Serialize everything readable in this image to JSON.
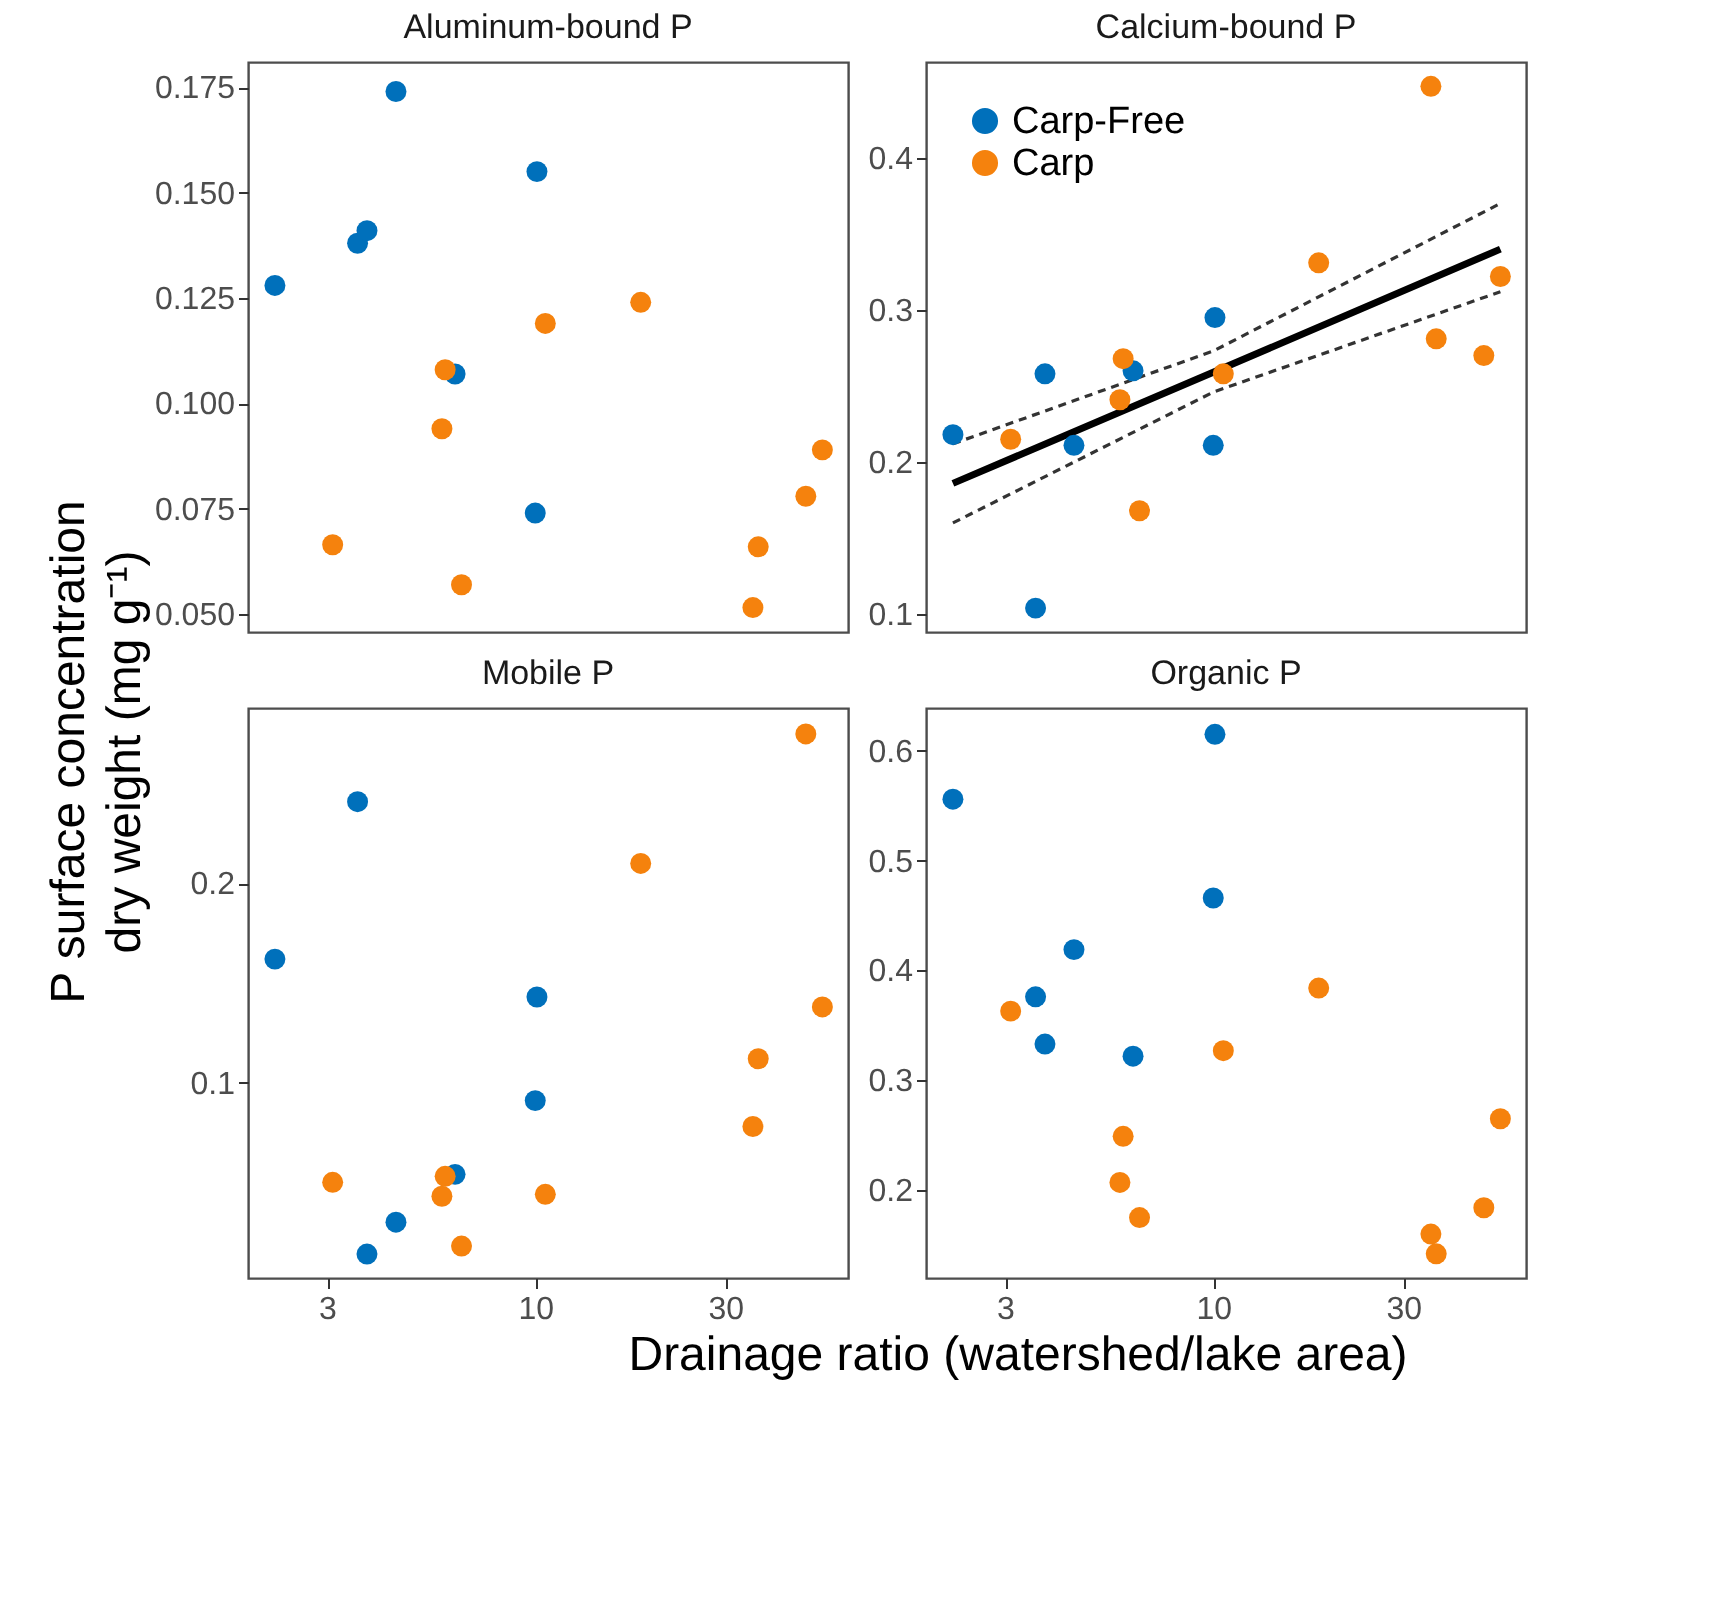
{
  "chart_data": [
    {
      "type": "scatter",
      "title": "Aluminum-bound P",
      "ylabel": "P surface concentration\ndry weight (mg g⁻¹)",
      "log": "x",
      "tick_labels": "y",
      "marker": "circle",
      "xlim": [
        1.9,
        61
      ],
      "xticks": [
        3,
        10,
        30
      ],
      "ylim": [
        0.0458,
        0.181
      ],
      "yticks": [
        {
          "value": 0.05,
          "label": "0.050"
        },
        0.075,
        {
          "value": 0.1,
          "label": "0.100"
        },
        0.125,
        {
          "value": 0.15,
          "label": "0.150"
        },
        0.175
      ],
      "series": [
        {
          "color": "#0070bb",
          "x": [
            2.22,
            3.58,
            3.78,
            4.47,
            6.29,
            10.0,
            10.1
          ],
          "values": [
            0.128,
            0.138,
            0.141,
            0.174,
            0.107,
            0.074,
            0.155
          ]
        },
        {
          "color": "#f5820d",
          "x": [
            3.1,
            5.83,
            5.94,
            6.53,
            10.6,
            18.4,
            35.2,
            36.3,
            47.8,
            52.6
          ],
          "values": [
            0.0665,
            0.094,
            0.108,
            0.057,
            0.119,
            0.124,
            0.0516,
            0.066,
            0.078,
            0.089
          ]
        }
      ]
    },
    {
      "type": "scatter",
      "title": "Calcium-bound P",
      "log": "x",
      "tick_labels": "y",
      "marker": "circle",
      "legend": "top left",
      "xlim": [
        1.9,
        61
      ],
      "xticks": [
        3,
        10,
        30
      ],
      "ylim": [
        0.0883,
        0.463
      ],
      "yticks": [
        0.1,
        0.2,
        0.3,
        0.4
      ],
      "series": [
        {
          "name": "Carp-Free",
          "color": "#0070bb",
          "x": [
            2.22,
            3.58,
            3.78,
            4.47,
            6.29,
            10.0,
            10.1
          ],
          "values": [
            0.218,
            0.104,
            0.258,
            0.211,
            0.26,
            0.211,
            0.295
          ]
        },
        {
          "name": "Carp",
          "color": "#f5820d",
          "x": [
            3.1,
            5.83,
            5.94,
            6.53,
            10.6,
            18.4,
            35.2,
            36.3,
            47.8,
            52.6
          ],
          "values": [
            0.215,
            0.241,
            0.268,
            0.168,
            0.258,
            0.331,
            0.447,
            0.281,
            0.27,
            0.322
          ]
        },
        {
          "type": "line",
          "color": "#000000",
          "line_style": "solid",
          "marker": "none",
          "x": [
            2.22,
            10.0,
            52.6
          ],
          "values": [
            0.186,
            0.259,
            0.34
          ]
        },
        {
          "type": "line",
          "color": "#333333",
          "line_style": "dashed",
          "marker": "none",
          "x": [
            2.22,
            10.0,
            52.6
          ],
          "values": [
            0.212,
            0.273,
            0.37
          ]
        },
        {
          "type": "line",
          "color": "#333333",
          "line_style": "dashed",
          "marker": "none",
          "x": [
            2.22,
            10.0,
            52.6
          ],
          "values": [
            0.16,
            0.246,
            0.312
          ]
        }
      ]
    },
    {
      "type": "scatter",
      "title": "Mobile P",
      "xlabel": "Drainage ratio (watershed/lake area)",
      "log": "x",
      "marker": "circle",
      "xlim": [
        1.9,
        61
      ],
      "xticks": [
        3,
        10,
        30
      ],
      "ylim": [
        0.002,
        0.288
      ],
      "yticks": [
        0.1,
        0.2
      ],
      "series": [
        {
          "color": "#0070bb",
          "x": [
            2.22,
            3.58,
            3.78,
            4.47,
            6.29,
            10.0,
            10.1
          ],
          "values": [
            0.162,
            0.241,
            0.014,
            0.03,
            0.054,
            0.091,
            0.143
          ]
        },
        {
          "color": "#f5820d",
          "x": [
            3.1,
            5.83,
            5.94,
            6.53,
            10.6,
            18.4,
            35.2,
            36.3,
            47.8,
            52.6
          ],
          "values": [
            0.05,
            0.043,
            0.053,
            0.018,
            0.044,
            0.21,
            0.078,
            0.112,
            0.275,
            0.138
          ]
        }
      ]
    },
    {
      "type": "scatter",
      "title": "Organic P",
      "log": "x",
      "marker": "circle",
      "xlim": [
        1.9,
        61
      ],
      "xticks": [
        3,
        10,
        30
      ],
      "ylim": [
        0.12,
        0.639
      ],
      "yticks": [
        0.2,
        0.3,
        0.4,
        0.5,
        0.6
      ],
      "series": [
        {
          "color": "#0070bb",
          "x": [
            2.22,
            3.58,
            3.78,
            4.47,
            6.29,
            10.0,
            10.1
          ],
          "values": [
            0.556,
            0.376,
            0.333,
            0.419,
            0.322,
            0.466,
            0.615
          ]
        },
        {
          "color": "#f5820d",
          "x": [
            3.1,
            5.83,
            5.94,
            6.53,
            10.6,
            18.4,
            35.2,
            36.3,
            47.8,
            52.6
          ],
          "values": [
            0.363,
            0.207,
            0.249,
            0.175,
            0.327,
            0.384,
            0.16,
            0.142,
            0.184,
            0.265
          ]
        }
      ]
    }
  ]
}
